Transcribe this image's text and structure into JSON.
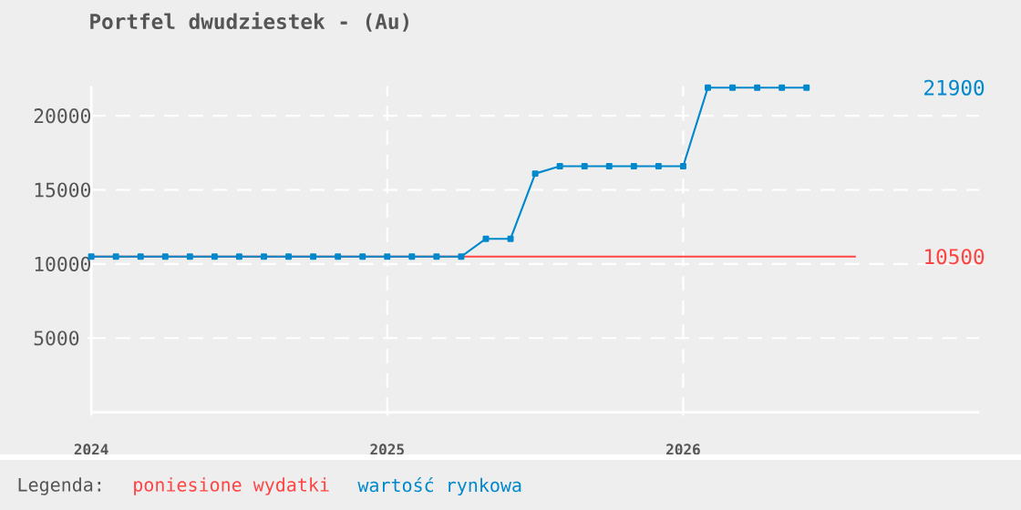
{
  "chart_data": {
    "type": "line",
    "title": "Portfel dwudziestek - (Au)",
    "legend_title": "Legenda:",
    "series": [
      {
        "name": "poniesione wydatki",
        "color": "#ff4444",
        "marker": "none",
        "x": [
          "2024-01",
          "2026-08"
        ],
        "values": [
          10500,
          10500
        ]
      },
      {
        "name": "wartość rynkowa",
        "color": "#0088cc",
        "marker": "square",
        "x": [
          "2024-01",
          "2024-02",
          "2024-03",
          "2024-04",
          "2024-05",
          "2024-06",
          "2024-07",
          "2024-08",
          "2024-09",
          "2024-10",
          "2024-11",
          "2024-12",
          "2025-01",
          "2025-02",
          "2025-03",
          "2025-04",
          "2025-05",
          "2025-06",
          "2025-07",
          "2025-08",
          "2025-09",
          "2025-10",
          "2025-11",
          "2025-12",
          "2026-01",
          "2026-02",
          "2026-03",
          "2026-04",
          "2026-05",
          "2026-06"
        ],
        "values": [
          10500,
          10500,
          10500,
          10500,
          10500,
          10500,
          10500,
          10500,
          10500,
          10500,
          10500,
          10500,
          10500,
          10500,
          10500,
          10500,
          11700,
          11700,
          16100,
          16600,
          16600,
          16600,
          16600,
          16600,
          16600,
          21900,
          21900,
          21900,
          21900,
          21900
        ]
      }
    ],
    "xlim": [
      "2024-01",
      "2027-01"
    ],
    "xticks": [
      "2024",
      "2025",
      "2026"
    ],
    "ylim": [
      0,
      22000
    ],
    "yticks": [
      5000,
      10000,
      15000,
      20000
    ],
    "y2lim": [
      0,
      22000
    ],
    "y2ticks": [
      10500,
      21900
    ],
    "grid": true,
    "legend": "bottom"
  }
}
